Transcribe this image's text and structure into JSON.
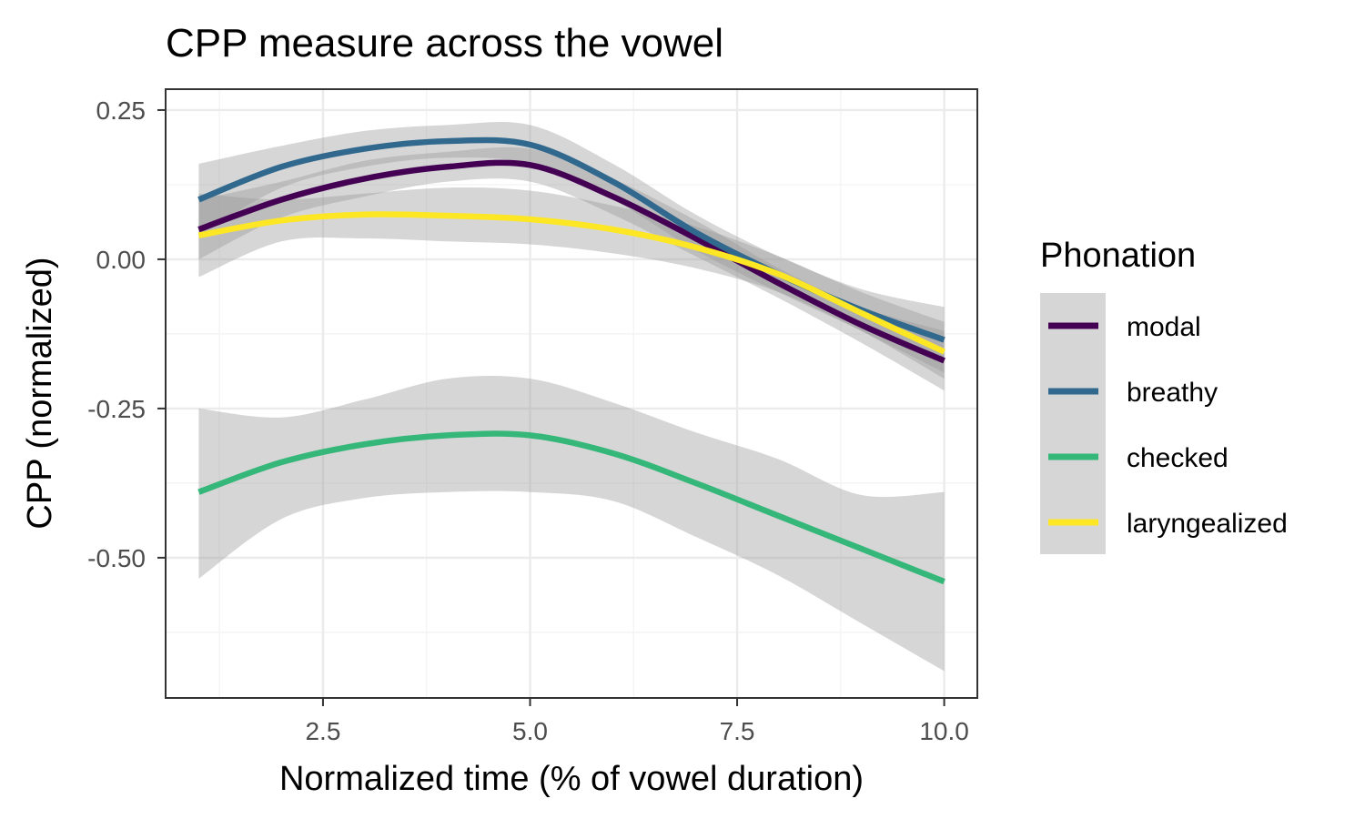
{
  "chart_data": {
    "type": "line",
    "title": "CPP measure across the vowel",
    "xlabel": "Normalized time (% of vowel duration)",
    "ylabel": "CPP (normalized)",
    "xlim": [
      0.6,
      10.4
    ],
    "ylim": [
      -0.735,
      0.285
    ],
    "x_ticks": [
      2.5,
      5.0,
      7.5,
      10.0
    ],
    "x_tick_labels": [
      "2.5",
      "5.0",
      "7.5",
      "10.0"
    ],
    "y_ticks": [
      0.25,
      0.0,
      -0.25,
      -0.5
    ],
    "y_tick_labels": [
      "0.25",
      "0.00",
      "-0.25",
      "-0.50"
    ],
    "grid": true,
    "legend": {
      "title": "Phonation",
      "position": "right"
    },
    "x": [
      1,
      2,
      3,
      4,
      5,
      6,
      7,
      8,
      9,
      10
    ],
    "series": [
      {
        "name": "modal",
        "color": "#440154",
        "values": [
          0.05,
          0.1,
          0.135,
          0.155,
          0.158,
          0.105,
          0.035,
          -0.04,
          -0.11,
          -0.17
        ],
        "ci_low": [
          0.0,
          0.07,
          0.105,
          0.13,
          0.13,
          0.075,
          0.005,
          -0.065,
          -0.14,
          -0.22
        ],
        "ci_high": [
          0.1,
          0.13,
          0.165,
          0.18,
          0.185,
          0.135,
          0.065,
          -0.015,
          -0.08,
          -0.12
        ]
      },
      {
        "name": "breathy",
        "color": "#31688E",
        "values": [
          0.1,
          0.155,
          0.185,
          0.198,
          0.192,
          0.13,
          0.045,
          -0.025,
          -0.085,
          -0.135
        ],
        "ci_low": [
          0.04,
          0.12,
          0.155,
          0.17,
          0.16,
          0.1,
          0.015,
          -0.055,
          -0.12,
          -0.19
        ],
        "ci_high": [
          0.16,
          0.19,
          0.215,
          0.225,
          0.225,
          0.16,
          0.075,
          0.005,
          -0.05,
          -0.08
        ]
      },
      {
        "name": "checked",
        "color": "#35B779",
        "values": [
          -0.39,
          -0.34,
          -0.31,
          -0.295,
          -0.295,
          -0.325,
          -0.375,
          -0.43,
          -0.485,
          -0.54
        ],
        "ci_low": [
          -0.535,
          -0.435,
          -0.4,
          -0.39,
          -0.39,
          -0.405,
          -0.465,
          -0.53,
          -0.61,
          -0.69
        ],
        "ci_high": [
          -0.25,
          -0.265,
          -0.235,
          -0.2,
          -0.2,
          -0.24,
          -0.29,
          -0.335,
          -0.395,
          -0.39
        ]
      },
      {
        "name": "laryngealized",
        "color": "#FDE725",
        "values": [
          0.04,
          0.065,
          0.075,
          0.073,
          0.067,
          0.05,
          0.02,
          -0.025,
          -0.09,
          -0.155
        ],
        "ci_low": [
          -0.03,
          0.03,
          0.035,
          0.03,
          0.025,
          0.01,
          -0.015,
          -0.055,
          -0.12,
          -0.2
        ],
        "ci_high": [
          0.11,
          0.1,
          0.11,
          0.12,
          0.115,
          0.09,
          0.055,
          0.005,
          -0.055,
          -0.105
        ]
      }
    ]
  }
}
